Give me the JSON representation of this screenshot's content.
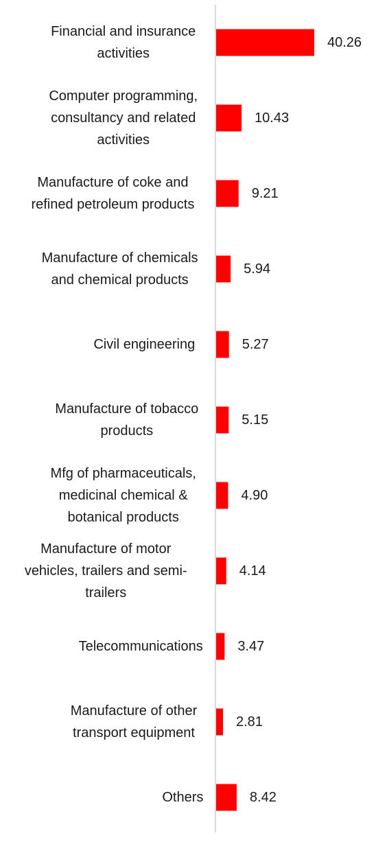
{
  "chart_data": {
    "type": "bar",
    "orientation": "horizontal",
    "title": "",
    "xlabel": "",
    "ylabel": "",
    "grid": false,
    "legend": "none",
    "xlim": [
      0,
      48
    ],
    "bar_color": "#ff0000",
    "axis_color": "#d9d9d9",
    "categories": [
      [
        "Financial and insurance",
        "activities"
      ],
      [
        "Computer programming,",
        "consultancy and related",
        "activities"
      ],
      [
        "Manufacture of coke and",
        "refined petroleum products"
      ],
      [
        "Manufacture of chemicals",
        "and chemical products"
      ],
      [
        "Civil engineering"
      ],
      [
        "Manufacture of tobacco",
        "products"
      ],
      [
        "Mfg of pharmaceuticals,",
        "medicinal chemical &",
        "botanical products"
      ],
      [
        "Manufacture of motor",
        "vehicles, trailers and semi-",
        "trailers"
      ],
      [
        "Telecommunications"
      ],
      [
        "Manufacture of other",
        "transport equipment"
      ],
      [
        "Others"
      ]
    ],
    "values": [
      40.26,
      10.43,
      9.21,
      5.94,
      5.27,
      5.15,
      4.9,
      4.14,
      3.47,
      2.81,
      8.42
    ],
    "value_labels": [
      "40.26",
      "10.43",
      "9.21",
      "5.94",
      "5.27",
      "5.15",
      "4.90",
      "4.14",
      "3.47",
      "2.81",
      "8.42"
    ]
  }
}
